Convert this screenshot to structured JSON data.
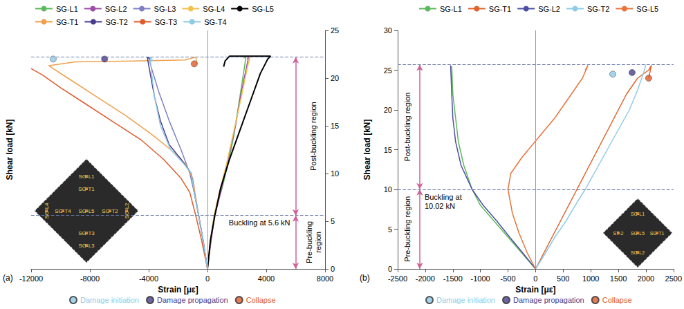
{
  "chart_data": [
    {
      "type": "line",
      "panel": "(a)",
      "xlabel": "Strain [με]",
      "ylabel": "Shear load [kN]",
      "xlim": [
        -12000,
        8000
      ],
      "xticks": [
        -12000,
        -8000,
        -4000,
        0,
        4000,
        8000
      ],
      "ylim": [
        0,
        25
      ],
      "yticks": [
        0,
        5,
        10,
        15,
        20,
        25
      ],
      "grid": false,
      "legend": "top",
      "reference_lines": [
        5.6,
        22.2
      ],
      "annotations": [
        {
          "text": "Buckling at 5.6 kN",
          "y": 5.6
        },
        {
          "text": "Pre-buckling region",
          "from": 0,
          "to": 5.6
        },
        {
          "text": "Post-buckling region",
          "from": 5.6,
          "to": 22.2
        }
      ],
      "inset_labels": [
        "SG-L1",
        "SG-T1",
        "SG-L5",
        "SG-T2",
        "SG-L2",
        "SG-T3",
        "SG-L3",
        "SG-T4",
        "SG-L4"
      ],
      "series": [
        {
          "name": "SG-L1",
          "color": "#5cb85c",
          "x": [
            0,
            150,
            300,
            450,
            700,
            1000,
            1400,
            1800,
            2100,
            2400,
            2550,
            2600,
            2450
          ],
          "values": [
            0,
            2,
            4,
            5.6,
            7,
            8.5,
            11,
            14,
            17,
            20,
            21.5,
            22.2,
            22.1
          ]
        },
        {
          "name": "SG-L2",
          "color": "#9b4fa8",
          "x": [
            0,
            250,
            500,
            900,
            1400,
            1900,
            2300,
            2700,
            2800,
            2700
          ],
          "values": [
            0,
            3,
            5.6,
            8,
            11.5,
            15,
            18.5,
            21.5,
            22.2,
            22
          ]
        },
        {
          "name": "SG-L3",
          "color": "#7f80c4",
          "x": [
            0,
            -300,
            -600,
            -900,
            -1200,
            -1800,
            -2600,
            -3300,
            -3800,
            -4000,
            -3850
          ],
          "values": [
            0,
            3,
            5.6,
            8,
            10,
            12.5,
            15.5,
            18.5,
            21,
            22.2,
            22
          ]
        },
        {
          "name": "SG-L4",
          "color": "#f2c14e",
          "x": [
            0,
            200,
            450,
            800,
            1300,
            1800,
            2300,
            2700,
            2900,
            2800
          ],
          "values": [
            0,
            3,
            5.6,
            8,
            11,
            14.5,
            18,
            21,
            22.2,
            22
          ]
        },
        {
          "name": "SG-L5",
          "color": "#000000",
          "x": [
            0,
            200,
            500,
            900,
            1500,
            2200,
            2900,
            3600,
            4100,
            4300,
            1500,
            1200,
            1100
          ],
          "values": [
            0,
            3,
            5.6,
            8.5,
            11.5,
            14.5,
            17.5,
            20.5,
            22,
            22.3,
            22.3,
            21.8,
            21.2
          ]
        },
        {
          "name": "SG-T1",
          "color": "#f0a04b",
          "x": [
            0,
            -300,
            -600,
            -800,
            -1000,
            -1500,
            -2500,
            -3700,
            -5500,
            -7500,
            -9500,
            -10800,
            -9000,
            -5000,
            -1500,
            -800,
            -700
          ],
          "values": [
            0,
            3,
            5.6,
            7.5,
            9.5,
            11,
            12.5,
            14,
            16,
            18,
            20,
            21.3,
            21.7,
            21.8,
            21.9,
            22.2,
            21.5
          ]
        },
        {
          "name": "SG-T2",
          "color": "#4a3c8c",
          "x": [
            0,
            -300,
            -600,
            -900,
            -1100,
            -1800,
            -2600,
            -3200,
            -3600,
            -3900,
            -4100,
            -3900
          ],
          "values": [
            0,
            3,
            5.6,
            8,
            10,
            11.5,
            13,
            15.5,
            18,
            20.5,
            22.2,
            22
          ]
        },
        {
          "name": "SG-T3",
          "color": "#e05a2b",
          "x": [
            0,
            -400,
            -800,
            -1200,
            -1800,
            -3000,
            -4500,
            -6500,
            -8500,
            -10000,
            -11200,
            -12000
          ],
          "values": [
            0,
            3,
            5.6,
            8,
            9.5,
            11.5,
            13.5,
            15.5,
            17.5,
            19,
            20.3,
            21
          ]
        },
        {
          "name": "SG-T4",
          "color": "#8fcbe6",
          "x": [
            0,
            -300,
            -600,
            -900,
            -1100,
            -1600,
            -2500,
            -3200,
            -3600,
            -3800,
            -3900,
            -3700
          ],
          "values": [
            0,
            3,
            5.6,
            8,
            10,
            11,
            12.5,
            15,
            18,
            20.5,
            22.2,
            21.8
          ]
        },
        {
          "name": "Damage initiation",
          "type": "scatter",
          "marker": "circle",
          "color": "#8fcbe6",
          "x": [
            -10500
          ],
          "values": [
            22
          ]
        },
        {
          "name": "Damage propagation",
          "type": "scatter",
          "marker": "circle",
          "color": "#4a3c8c",
          "x": [
            -7000
          ],
          "values": [
            22
          ]
        },
        {
          "name": "Collapse",
          "type": "scatter",
          "marker": "circle",
          "color": "#e05a2b",
          "x": [
            -900
          ],
          "values": [
            21.5
          ]
        }
      ]
    },
    {
      "type": "line",
      "panel": "(b)",
      "xlabel": "Strain [με]",
      "ylabel": "Shear load [kN]",
      "xlim": [
        -2500,
        2500
      ],
      "xticks": [
        -2500,
        -2000,
        -1500,
        -1000,
        -500,
        0,
        500,
        1000,
        1500,
        2000,
        2500
      ],
      "ylim": [
        0,
        30
      ],
      "yticks": [
        0,
        5,
        10,
        15,
        20,
        25,
        30
      ],
      "grid": false,
      "legend": "top",
      "reference_lines": [
        10.02,
        25.7
      ],
      "annotations": [
        {
          "text": "Buckling at 10.02 kN",
          "y": 10.02
        },
        {
          "text": "Pre-buckling region",
          "from": 0,
          "to": 10.02
        },
        {
          "text": "Post-buckling region",
          "from": 10.02,
          "to": 25.7
        }
      ],
      "inset_labels": [
        "SG-L1",
        "SG-L5",
        "SG-T1",
        "ST-2",
        "SG-L2"
      ],
      "series": [
        {
          "name": "SG-L1",
          "color": "#5cb85c",
          "x": [
            0,
            -250,
            -500,
            -750,
            -1000,
            -1150,
            -1300,
            -1400,
            -1450,
            -1500,
            -1520
          ],
          "values": [
            0,
            2,
            4,
            6,
            8,
            10,
            13,
            16,
            19,
            22,
            25.5
          ]
        },
        {
          "name": "SG-T1",
          "color": "#e0622a",
          "x": [
            0,
            150,
            300,
            450,
            600,
            750,
            900,
            1050,
            1200,
            1350,
            1500,
            1650,
            1850,
            2050,
            2100,
            2050
          ],
          "values": [
            0,
            2,
            4,
            6,
            8,
            10,
            12,
            14,
            16,
            18,
            20,
            22,
            24,
            25,
            25.6,
            24
          ]
        },
        {
          "name": "SG-L2",
          "color": "#4d4fa3",
          "x": [
            0,
            -230,
            -470,
            -700,
            -950,
            -1150,
            -1350,
            -1450,
            -1500,
            -1520,
            -1540
          ],
          "values": [
            0,
            2,
            4,
            6,
            8,
            10,
            13,
            16,
            19,
            22,
            25.6
          ]
        },
        {
          "name": "SG-T2",
          "color": "#8fcbe6",
          "x": [
            0,
            180,
            350,
            550,
            720,
            900,
            1100,
            1300,
            1500,
            1700,
            1850,
            1950,
            2000
          ],
          "values": [
            0,
            2,
            4,
            6,
            8,
            10,
            12.5,
            15,
            17.5,
            20,
            22.5,
            24.5,
            25.7
          ]
        },
        {
          "name": "SG-L5",
          "color": "#e8743b",
          "x": [
            0,
            -150,
            -300,
            -420,
            -500,
            -450,
            -250,
            50,
            350,
            650,
            850,
            950,
            900
          ],
          "values": [
            0,
            2,
            4.5,
            7,
            10,
            12,
            14,
            16.5,
            19,
            22,
            24,
            25.6,
            25
          ]
        },
        {
          "name": "Damage initiation",
          "type": "scatter",
          "marker": "circle",
          "color": "#8fcbe6",
          "x": [
            1400
          ],
          "values": [
            24.5
          ]
        },
        {
          "name": "Damage propagation",
          "type": "scatter",
          "marker": "circle",
          "color": "#4a3c8c",
          "x": [
            1750
          ],
          "values": [
            24.7
          ]
        },
        {
          "name": "Collapse",
          "type": "scatter",
          "marker": "circle",
          "color": "#e05a2b",
          "x": [
            2050
          ],
          "values": [
            24
          ]
        }
      ]
    }
  ]
}
